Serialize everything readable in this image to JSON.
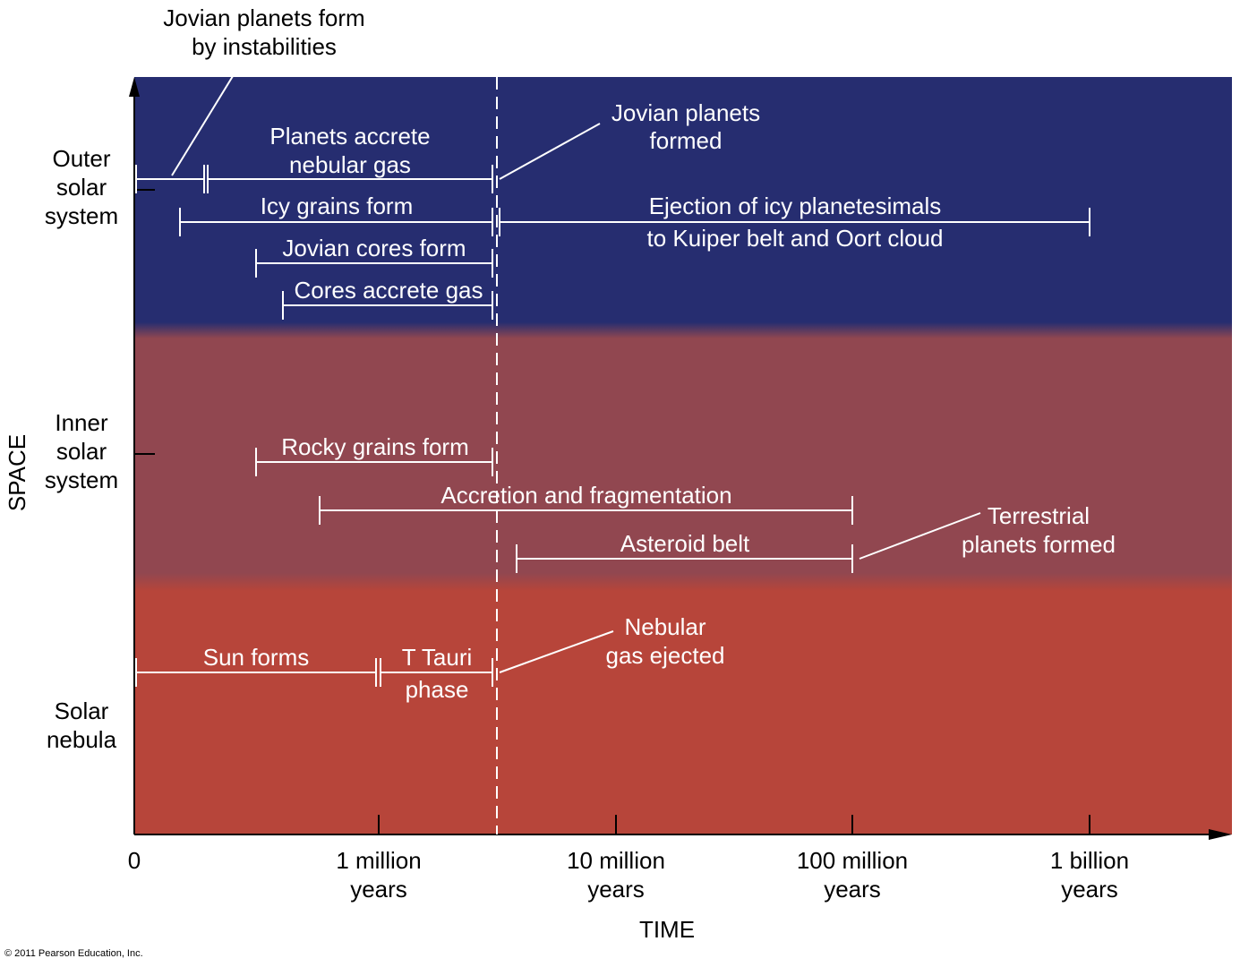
{
  "colors": {
    "outer_region": "#262d70",
    "inner_region": "#914750",
    "nebula_region": "#b7453a",
    "bar": "#ffffff",
    "axis": "#000000"
  },
  "axes": {
    "x_label": "TIME",
    "y_label": "SPACE",
    "x_ticks": [
      {
        "l1": "0",
        "l2": ""
      },
      {
        "l1": "1 million",
        "l2": "years"
      },
      {
        "l1": "10 million",
        "l2": "years"
      },
      {
        "l1": "100 million",
        "l2": "years"
      },
      {
        "l1": "1 billion",
        "l2": "years"
      }
    ]
  },
  "regions": {
    "outer": [
      "Outer",
      "solar",
      "system"
    ],
    "inner": [
      "Inner",
      "solar",
      "system"
    ],
    "nebula": [
      "Solar",
      "nebula"
    ]
  },
  "bars": [
    {
      "label": "Planets accrete nebular gas"
    },
    {
      "label": "Icy grains form"
    },
    {
      "label": "Ejection of icy planetesimals to Kuiper belt and Oort cloud"
    },
    {
      "label": "Jovian cores form"
    },
    {
      "label": "Cores accrete gas"
    },
    {
      "label": "Rocky grains form"
    },
    {
      "label": "Accretion and fragmentation"
    },
    {
      "label": "Asteroid belt"
    },
    {
      "label": "Sun forms"
    },
    {
      "label": "T Tauri phase"
    }
  ],
  "labels": {
    "planets_accrete_1": "Planets accrete",
    "planets_accrete_2": "nebular gas",
    "icy_grains": "Icy grains form",
    "ejection_1": "Ejection of icy planetesimals",
    "ejection_2": "to Kuiper belt and Oort cloud",
    "jovian_cores": "Jovian cores form",
    "cores_accrete": "Cores accrete gas",
    "rocky_grains": "Rocky grains form",
    "accretion": "Accretion and fragmentation",
    "asteroid_belt": "Asteroid belt",
    "sun_forms": "Sun forms",
    "t_tauri_1": "T Tauri",
    "t_tauri_2": "phase"
  },
  "callouts": {
    "instabilities_1": "Jovian planets form",
    "instabilities_2": "by instabilities",
    "jovian_formed_1": "Jovian planets",
    "jovian_formed_2": "formed",
    "terrestrial_1": "Terrestrial",
    "terrestrial_2": "planets formed",
    "nebular_ejected_1": "Nebular",
    "nebular_ejected_2": "gas ejected"
  },
  "copyright": "© 2011 Pearson Education, Inc."
}
